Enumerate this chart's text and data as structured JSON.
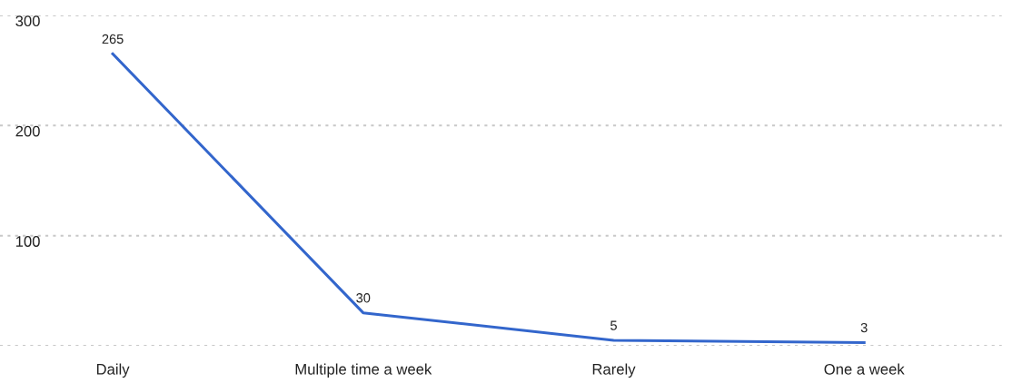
{
  "chart_data": {
    "type": "line",
    "categories": [
      "Daily",
      "Multiple time a week",
      "Rarely",
      "One a week"
    ],
    "series": [
      {
        "color": "#3366cc",
        "values": [
          265,
          30,
          5,
          3
        ]
      }
    ],
    "ylim": [
      0,
      300
    ],
    "yticks": [
      {
        "value": 0,
        "label": null
      },
      100,
      200,
      300
    ],
    "grid": "y",
    "data_labels": true,
    "marker": "none",
    "line_style": "solid",
    "legend": false
  }
}
